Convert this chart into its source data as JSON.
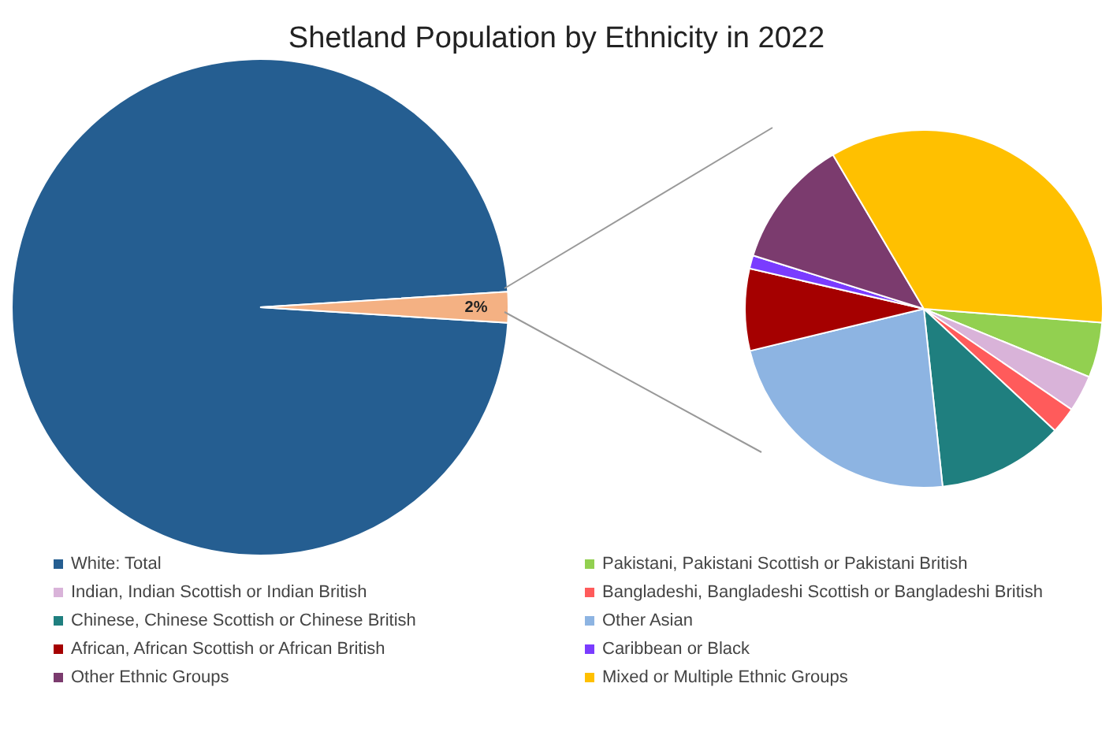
{
  "chart_data": [
    {
      "type": "pie",
      "title": "Shetland Population by Ethnicity in 2022",
      "categories": [
        "White: Total",
        null
      ],
      "values": [
        98,
        2
      ],
      "colors": [
        "#255e91",
        "#f4b183"
      ],
      "value_labels": [
        null,
        "2%"
      ],
      "legend": "bottom"
    },
    {
      "type": "pie",
      "categories": [
        "Pakistani, Pakistani Scottish or Pakistani British",
        "Indian, Indian Scottish or Indian British",
        "Bangladeshi, Bangladeshi Scottish or Bangladeshi British",
        "Chinese, Chinese Scottish or Chinese British",
        "Other Asian",
        "African, African Scottish or African British",
        "Caribbean or Black",
        "Other Ethnic Groups",
        "Mixed or Multiple Ethnic Groups"
      ],
      "values": [
        5,
        3.3,
        2.4,
        11.4,
        22.9,
        7.4,
        1.2,
        11.7,
        34.7
      ],
      "colors": [
        "#92d050",
        "#d9b3d9",
        "#ff5b5b",
        "#1f7f7f",
        "#8db4e2",
        "#a50000",
        "#7a3cff",
        "#7b3b6e",
        "#ffc000"
      ],
      "legend": "bottom"
    }
  ]
}
